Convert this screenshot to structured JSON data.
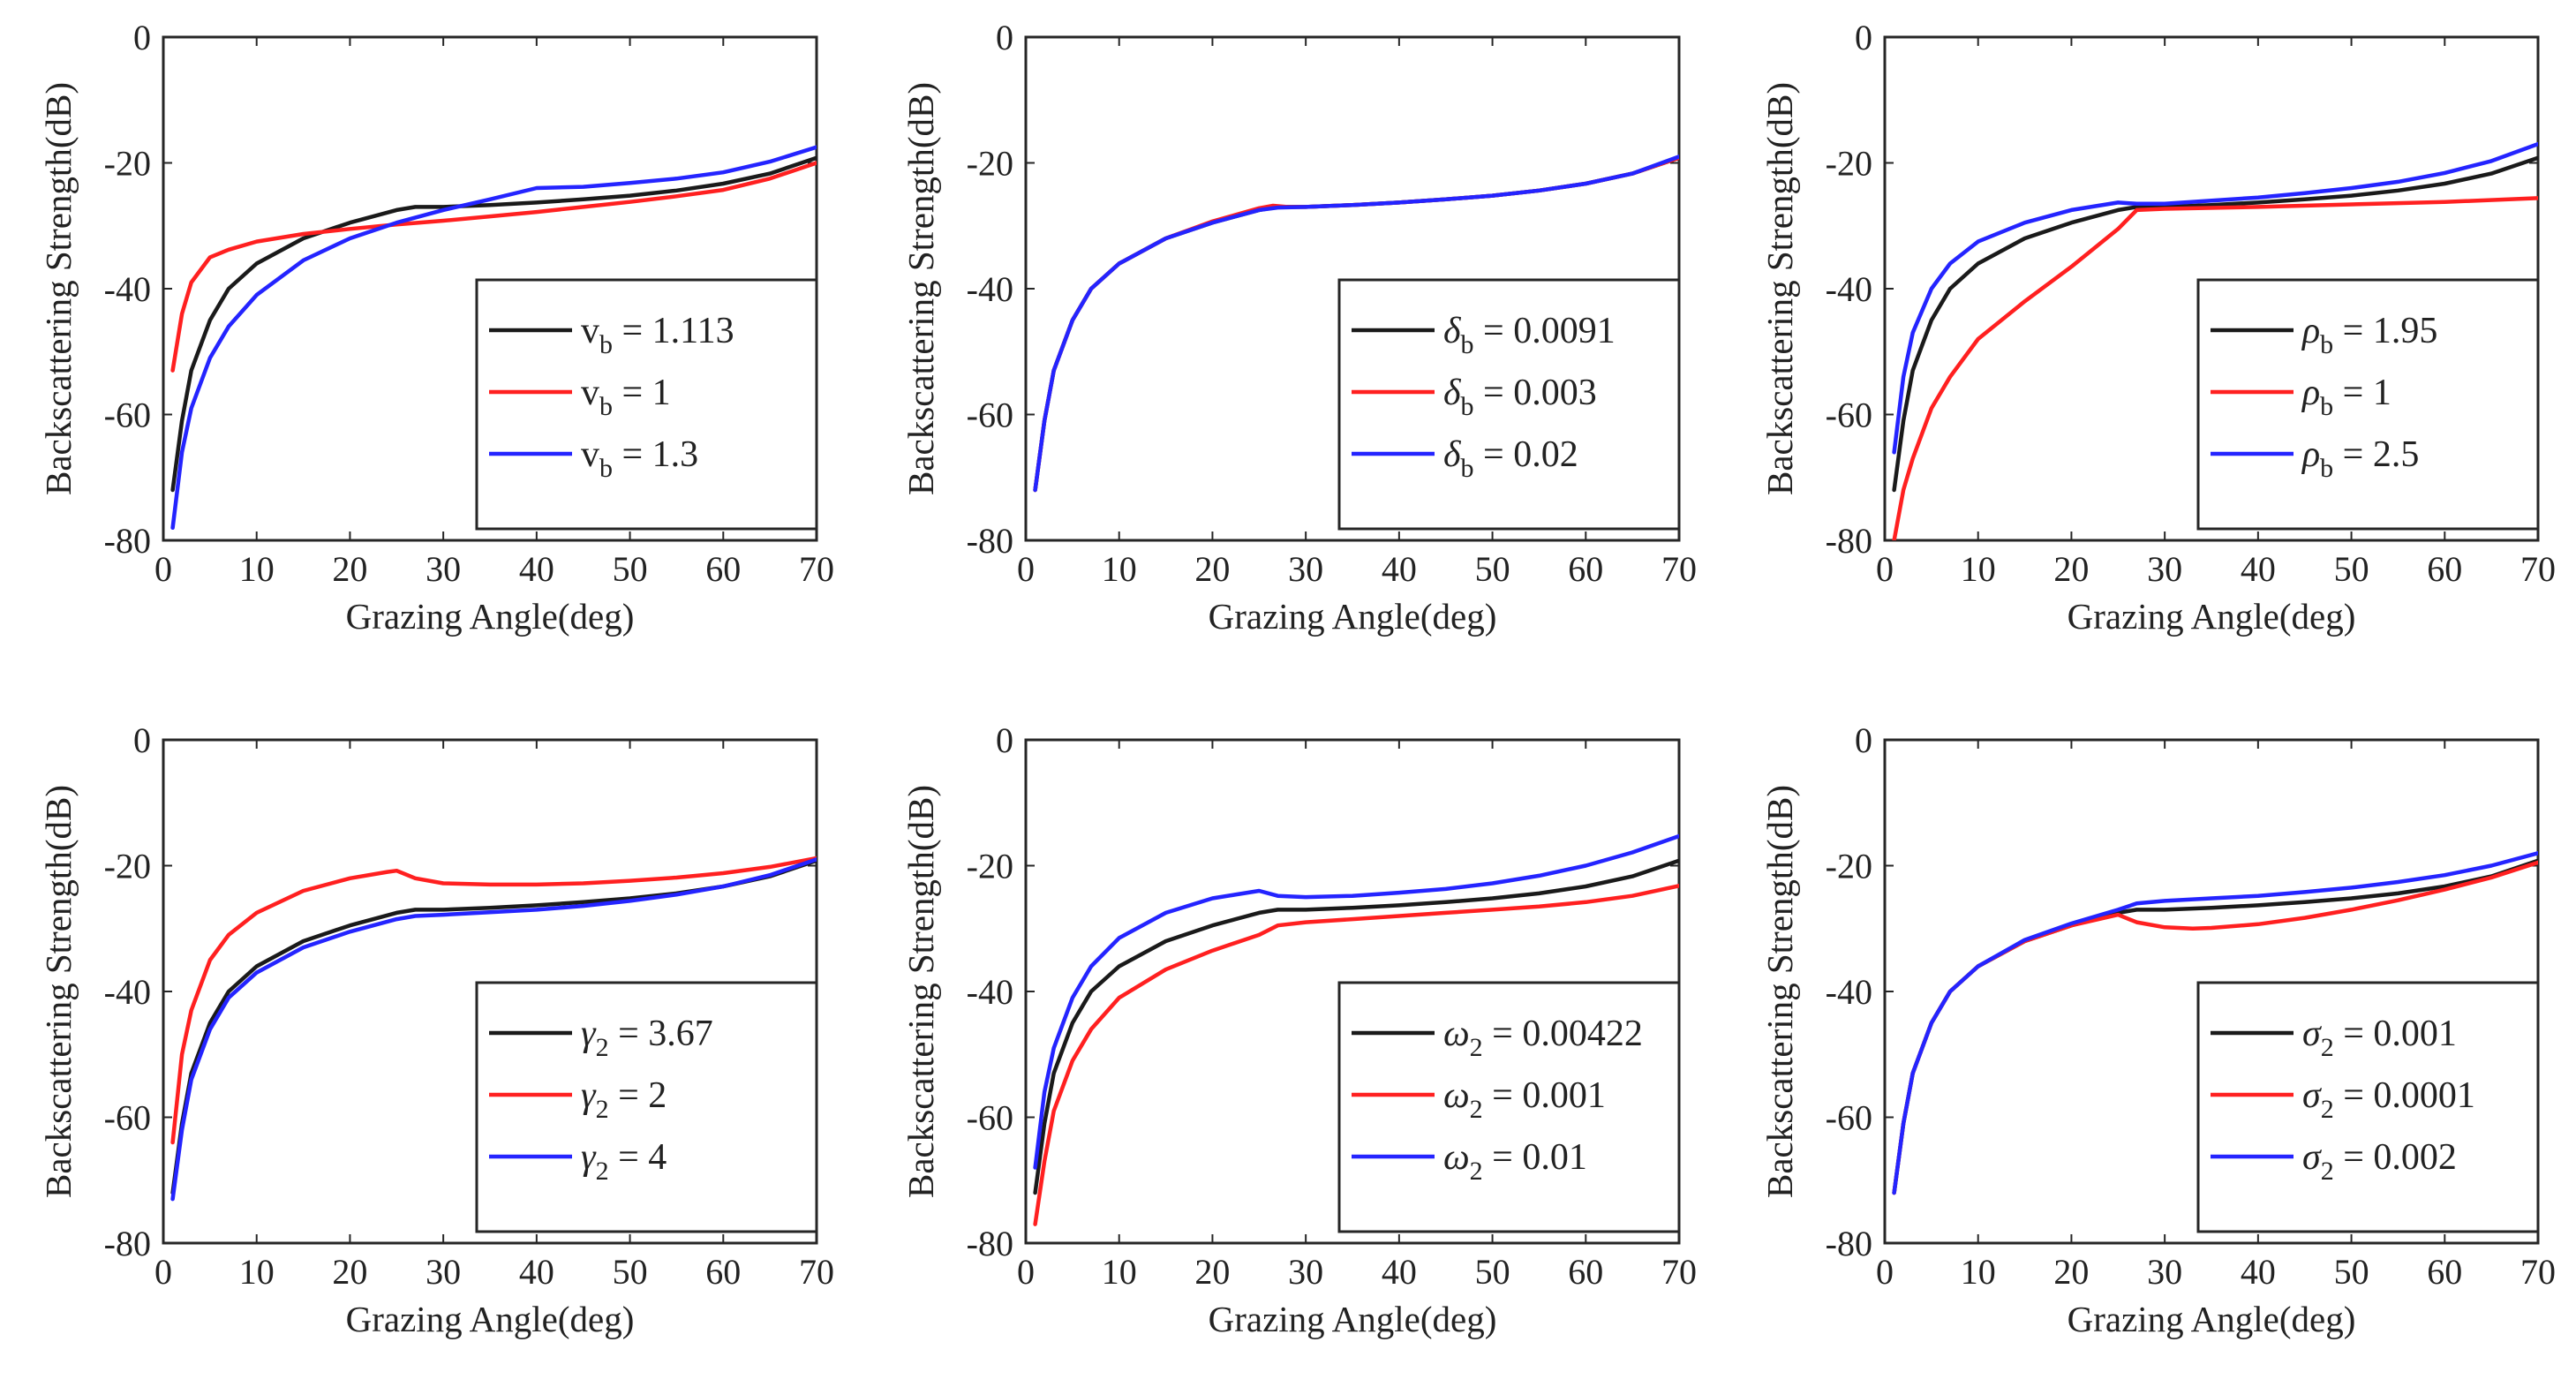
{
  "chart_data": [
    {
      "type": "line",
      "xlabel": "Grazing Angle(deg)",
      "ylabel": "Backscattering Strength(dB)",
      "xlim": [
        0,
        70
      ],
      "ylim": [
        -80,
        0
      ],
      "xticks": [
        "0",
        "10",
        "20",
        "30",
        "40",
        "50",
        "60",
        "70"
      ],
      "yticks": [
        "0",
        "-20",
        "-40",
        "-60",
        "-80"
      ],
      "legend_position": "lower-right",
      "series": [
        {
          "sym": "v",
          "sub": "b",
          "value": " = 1.113",
          "color": "#1a1a1a",
          "x": [
            1,
            2,
            3,
            5,
            7,
            10,
            15,
            20,
            25,
            27,
            30,
            35,
            40,
            45,
            50,
            55,
            60,
            65,
            70
          ],
          "y": [
            -72,
            -61,
            -53,
            -45,
            -40,
            -36,
            -32,
            -29.5,
            -27.5,
            -27,
            -27,
            -26.7,
            -26.3,
            -25.8,
            -25.2,
            -24.4,
            -23.3,
            -21.7,
            -19.2
          ]
        },
        {
          "sym": "v",
          "sub": "b",
          "value": " = 1",
          "color": "#ff2020",
          "x": [
            1,
            2,
            3,
            5,
            7,
            10,
            15,
            20,
            25,
            30,
            35,
            40,
            45,
            50,
            55,
            60,
            65,
            70
          ],
          "y": [
            -53,
            -44,
            -39,
            -35,
            -33.8,
            -32.5,
            -31.3,
            -30.5,
            -29.8,
            -29.2,
            -28.5,
            -27.8,
            -27,
            -26.2,
            -25.3,
            -24.3,
            -22.5,
            -20
          ]
        },
        {
          "sym": "v",
          "sub": "b",
          "value": " = 1.3",
          "color": "#2424ff",
          "x": [
            1,
            2,
            3,
            5,
            7,
            10,
            15,
            20,
            25,
            30,
            35,
            40,
            45,
            50,
            55,
            60,
            65,
            70
          ],
          "y": [
            -78,
            -66,
            -59,
            -51,
            -46,
            -41,
            -35.5,
            -32,
            -29.5,
            -27.5,
            -25.8,
            -24,
            -23.8,
            -23.2,
            -22.5,
            -21.5,
            -19.8,
            -17.5
          ]
        }
      ]
    },
    {
      "type": "line",
      "xlabel": "Grazing Angle(deg)",
      "ylabel": "Backscattering Strength(dB)",
      "xlim": [
        0,
        70
      ],
      "ylim": [
        -80,
        0
      ],
      "xticks": [
        "0",
        "10",
        "20",
        "30",
        "40",
        "50",
        "60",
        "70"
      ],
      "yticks": [
        "0",
        "-20",
        "-40",
        "-60",
        "-80"
      ],
      "legend_position": "lower-right",
      "series": [
        {
          "sym": "δ",
          "sub": "b",
          "value": " = 0.0091",
          "color": "#1a1a1a",
          "x": [
            1,
            2,
            3,
            5,
            7,
            10,
            15,
            20,
            25,
            27,
            30,
            35,
            40,
            45,
            50,
            55,
            60,
            65,
            70
          ],
          "y": [
            -72,
            -61,
            -53,
            -45,
            -40,
            -36,
            -32,
            -29.5,
            -27.5,
            -27,
            -27,
            -26.7,
            -26.3,
            -25.8,
            -25.2,
            -24.4,
            -23.3,
            -21.7,
            -19.2
          ]
        },
        {
          "sym": "δ",
          "sub": "b",
          "value": " = 0.003",
          "color": "#ff2020",
          "x": [
            1,
            2,
            3,
            5,
            7,
            10,
            15,
            20,
            25,
            26.5,
            28,
            30,
            35,
            40,
            45,
            50,
            55,
            60,
            65,
            70
          ],
          "y": [
            -72,
            -61,
            -53,
            -45,
            -40,
            -36,
            -32,
            -29.3,
            -27.2,
            -26.8,
            -27,
            -27,
            -26.7,
            -26.3,
            -25.8,
            -25.2,
            -24.4,
            -23.3,
            -21.7,
            -19.2
          ]
        },
        {
          "sym": "δ",
          "sub": "b",
          "value": " = 0.02",
          "color": "#2424ff",
          "x": [
            1,
            2,
            3,
            5,
            7,
            10,
            15,
            20,
            25,
            27,
            30,
            35,
            40,
            45,
            50,
            55,
            60,
            65,
            70
          ],
          "y": [
            -72,
            -61,
            -53,
            -45,
            -40,
            -36,
            -32,
            -29.5,
            -27.5,
            -27.1,
            -27,
            -26.7,
            -26.3,
            -25.8,
            -25.2,
            -24.4,
            -23.3,
            -21.7,
            -19
          ]
        }
      ]
    },
    {
      "type": "line",
      "xlabel": "Grazing Angle(deg)",
      "ylabel": "Backscattering Strength(dB)",
      "xlim": [
        0,
        70
      ],
      "ylim": [
        -80,
        0
      ],
      "xticks": [
        "0",
        "10",
        "20",
        "30",
        "40",
        "50",
        "60",
        "70"
      ],
      "yticks": [
        "0",
        "-20",
        "-40",
        "-60",
        "-80"
      ],
      "legend_position": "lower-right",
      "series": [
        {
          "sym": "ρ",
          "sub": "b",
          "value": " = 1.95",
          "color": "#1a1a1a",
          "x": [
            1,
            2,
            3,
            5,
            7,
            10,
            15,
            20,
            25,
            27,
            30,
            35,
            40,
            45,
            50,
            55,
            60,
            65,
            70
          ],
          "y": [
            -72,
            -61,
            -53,
            -45,
            -40,
            -36,
            -32,
            -29.5,
            -27.5,
            -27,
            -27,
            -26.7,
            -26.3,
            -25.8,
            -25.2,
            -24.4,
            -23.3,
            -21.7,
            -19.2
          ]
        },
        {
          "sym": "ρ",
          "sub": "b",
          "value": " = 1",
          "color": "#ff2020",
          "x": [
            1,
            2,
            3,
            5,
            7,
            10,
            15,
            20,
            25,
            27,
            30,
            40,
            50,
            60,
            70
          ],
          "y": [
            -80,
            -72,
            -67,
            -59,
            -54,
            -48,
            -42,
            -36.5,
            -30.5,
            -27.5,
            -27.3,
            -27,
            -26.6,
            -26.2,
            -25.6
          ]
        },
        {
          "sym": "ρ",
          "sub": "b",
          "value": " = 2.5",
          "color": "#2424ff",
          "x": [
            1,
            2,
            3,
            5,
            7,
            10,
            15,
            20,
            25,
            27,
            30,
            35,
            40,
            45,
            50,
            55,
            60,
            65,
            70
          ],
          "y": [
            -66,
            -54,
            -47,
            -40,
            -36,
            -32.5,
            -29.5,
            -27.5,
            -26.3,
            -26.5,
            -26.5,
            -26,
            -25.5,
            -24.8,
            -24,
            -23,
            -21.6,
            -19.7,
            -17
          ]
        }
      ]
    },
    {
      "type": "line",
      "xlabel": "Grazing Angle(deg)",
      "ylabel": "Backscattering Strength(dB)",
      "xlim": [
        0,
        70
      ],
      "ylim": [
        -80,
        0
      ],
      "xticks": [
        "0",
        "10",
        "20",
        "30",
        "40",
        "50",
        "60",
        "70"
      ],
      "yticks": [
        "0",
        "-20",
        "-40",
        "-60",
        "-80"
      ],
      "legend_position": "lower-right",
      "series": [
        {
          "sym": "γ",
          "sub": "2",
          "value": " = 3.67",
          "color": "#1a1a1a",
          "x": [
            1,
            2,
            3,
            5,
            7,
            10,
            15,
            20,
            25,
            27,
            30,
            35,
            40,
            45,
            50,
            55,
            60,
            65,
            70
          ],
          "y": [
            -72,
            -61,
            -53,
            -45,
            -40,
            -36,
            -32,
            -29.5,
            -27.5,
            -27,
            -27,
            -26.7,
            -26.3,
            -25.8,
            -25.2,
            -24.4,
            -23.3,
            -21.7,
            -19.2
          ]
        },
        {
          "sym": "γ",
          "sub": "2",
          "value": " = 2",
          "color": "#ff2020",
          "x": [
            1,
            2,
            3,
            5,
            7,
            10,
            15,
            20,
            24,
            25,
            27,
            30,
            35,
            40,
            45,
            50,
            55,
            60,
            65,
            70
          ],
          "y": [
            -64,
            -50,
            -43,
            -35,
            -31,
            -27.5,
            -24,
            -22,
            -21,
            -20.8,
            -22,
            -22.8,
            -23,
            -23,
            -22.8,
            -22.4,
            -21.9,
            -21.2,
            -20.2,
            -18.8
          ]
        },
        {
          "sym": "γ",
          "sub": "2",
          "value": " = 4",
          "color": "#2424ff",
          "x": [
            1,
            2,
            3,
            5,
            7,
            10,
            15,
            20,
            25,
            27,
            30,
            35,
            40,
            45,
            50,
            55,
            60,
            65,
            70
          ],
          "y": [
            -73,
            -62,
            -54,
            -46,
            -41,
            -37,
            -33,
            -30.5,
            -28.5,
            -28,
            -27.8,
            -27.4,
            -27,
            -26.4,
            -25.6,
            -24.6,
            -23.3,
            -21.5,
            -19
          ]
        }
      ]
    },
    {
      "type": "line",
      "xlabel": "Grazing Angle(deg)",
      "ylabel": "Backscattering Strength(dB)",
      "xlim": [
        0,
        70
      ],
      "ylim": [
        -80,
        0
      ],
      "xticks": [
        "0",
        "10",
        "20",
        "30",
        "40",
        "50",
        "60",
        "70"
      ],
      "yticks": [
        "0",
        "-20",
        "-40",
        "-60",
        "-80"
      ],
      "legend_position": "lower-right",
      "series": [
        {
          "sym": "ω",
          "sub": "2",
          "value": " = 0.00422",
          "color": "#1a1a1a",
          "x": [
            1,
            2,
            3,
            5,
            7,
            10,
            15,
            20,
            25,
            27,
            30,
            35,
            40,
            45,
            50,
            55,
            60,
            65,
            70
          ],
          "y": [
            -72,
            -61,
            -53,
            -45,
            -40,
            -36,
            -32,
            -29.5,
            -27.5,
            -27,
            -27,
            -26.7,
            -26.3,
            -25.8,
            -25.2,
            -24.4,
            -23.3,
            -21.7,
            -19.2
          ]
        },
        {
          "sym": "ω",
          "sub": "2",
          "value": " = 0.001",
          "color": "#ff2020",
          "x": [
            1,
            2,
            3,
            5,
            7,
            10,
            15,
            20,
            25,
            27,
            30,
            35,
            40,
            45,
            50,
            55,
            60,
            65,
            70
          ],
          "y": [
            -77,
            -67,
            -59,
            -51,
            -46,
            -41,
            -36.5,
            -33.5,
            -31,
            -29.5,
            -29,
            -28.5,
            -28,
            -27.5,
            -27,
            -26.5,
            -25.8,
            -24.8,
            -23.2
          ]
        },
        {
          "sym": "ω",
          "sub": "2",
          "value": " = 0.01",
          "color": "#2424ff",
          "x": [
            1,
            2,
            3,
            5,
            7,
            10,
            15,
            20,
            25,
            27,
            30,
            35,
            40,
            45,
            50,
            55,
            60,
            65,
            70
          ],
          "y": [
            -68,
            -56,
            -49,
            -41,
            -36,
            -31.5,
            -27.5,
            -25.2,
            -24,
            -24.8,
            -25,
            -24.8,
            -24.3,
            -23.7,
            -22.8,
            -21.6,
            -20,
            -17.9,
            -15.3
          ]
        }
      ]
    },
    {
      "type": "line",
      "xlabel": "Grazing Angle(deg)",
      "ylabel": "Backscattering Strength(dB)",
      "xlim": [
        0,
        70
      ],
      "ylim": [
        -80,
        0
      ],
      "xticks": [
        "0",
        "10",
        "20",
        "30",
        "40",
        "50",
        "60",
        "70"
      ],
      "yticks": [
        "0",
        "-20",
        "-40",
        "-60",
        "-80"
      ],
      "legend_position": "lower-right",
      "series": [
        {
          "sym": "σ",
          "sub": "2",
          "value": " = 0.001",
          "color": "#1a1a1a",
          "x": [
            1,
            2,
            3,
            5,
            7,
            10,
            15,
            20,
            25,
            27,
            30,
            35,
            40,
            45,
            50,
            55,
            60,
            65,
            70
          ],
          "y": [
            -72,
            -61,
            -53,
            -45,
            -40,
            -36,
            -32,
            -29.5,
            -27.5,
            -27,
            -27,
            -26.7,
            -26.3,
            -25.8,
            -25.2,
            -24.4,
            -23.3,
            -21.7,
            -19.2
          ]
        },
        {
          "sym": "σ",
          "sub": "2",
          "value": " = 0.0001",
          "color": "#ff2020",
          "x": [
            1,
            2,
            3,
            5,
            7,
            10,
            15,
            20,
            25,
            27,
            30,
            33,
            35,
            40,
            45,
            50,
            55,
            60,
            65,
            70
          ],
          "y": [
            -72,
            -61,
            -53,
            -45,
            -40,
            -36,
            -32,
            -29.5,
            -27.8,
            -29,
            -29.8,
            -30,
            -29.9,
            -29.3,
            -28.3,
            -27,
            -25.5,
            -23.8,
            -21.9,
            -19.5
          ]
        },
        {
          "sym": "σ",
          "sub": "2",
          "value": " = 0.002",
          "color": "#2424ff",
          "x": [
            1,
            2,
            3,
            5,
            7,
            10,
            15,
            20,
            25,
            27,
            30,
            35,
            40,
            45,
            50,
            55,
            60,
            65,
            70
          ],
          "y": [
            -72,
            -61,
            -53,
            -45,
            -40,
            -36,
            -31.8,
            -29.2,
            -27,
            -26,
            -25.6,
            -25.2,
            -24.8,
            -24.2,
            -23.5,
            -22.6,
            -21.5,
            -20,
            -18
          ]
        }
      ]
    }
  ]
}
